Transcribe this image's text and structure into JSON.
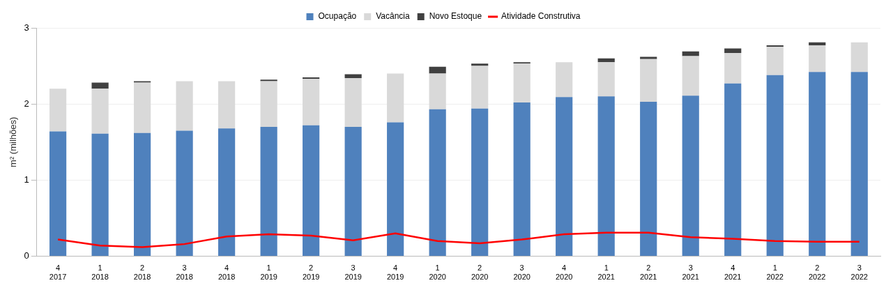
{
  "chart_data": {
    "type": "bar",
    "stacked": true,
    "ylabel": "m² (milhões)",
    "categories": [
      "4\n2017",
      "1\n2018",
      "2\n2018",
      "3\n2018",
      "4\n2018",
      "1\n2019",
      "2\n2019",
      "3\n2019",
      "4\n2019",
      "1\n2020",
      "2\n2020",
      "3\n2020",
      "4\n2020",
      "1\n2021",
      "2\n2021",
      "3\n2021",
      "4\n2021",
      "1\n2022",
      "2\n2022",
      "3\n2022"
    ],
    "series": [
      {
        "name": "Ocupação",
        "color": "#4f81bd",
        "values": [
          1.64,
          1.61,
          1.62,
          1.65,
          1.68,
          1.7,
          1.72,
          1.7,
          1.76,
          1.93,
          1.94,
          2.02,
          2.09,
          2.1,
          2.03,
          2.11,
          2.27,
          2.38,
          2.42,
          2.42
        ]
      },
      {
        "name": "Vacância",
        "color": "#d9d9d9",
        "values": [
          0.56,
          0.59,
          0.66,
          0.65,
          0.62,
          0.6,
          0.61,
          0.64,
          0.64,
          0.47,
          0.56,
          0.51,
          0.46,
          0.45,
          0.56,
          0.52,
          0.4,
          0.37,
          0.35,
          0.39
        ]
      },
      {
        "name": "Novo Estoque",
        "color": "#404040",
        "values": [
          0,
          0.08,
          0.02,
          0,
          0,
          0.02,
          0.02,
          0.05,
          0,
          0.09,
          0.03,
          0.02,
          0,
          0.05,
          0.03,
          0.06,
          0.06,
          0.02,
          0.04,
          0
        ]
      },
      {
        "name": "Atividade Construtiva",
        "type": "line",
        "color": "#ff0000",
        "values": [
          0.22,
          0.14,
          0.12,
          0.16,
          0.26,
          0.29,
          0.27,
          0.21,
          0.3,
          0.2,
          0.17,
          0.22,
          0.29,
          0.31,
          0.31,
          0.25,
          0.23,
          0.2,
          0.19,
          0.19
        ]
      }
    ],
    "ylim": [
      0,
      3
    ],
    "yticks": [
      0,
      1,
      2,
      3
    ],
    "grid": "y",
    "legend": "top",
    "marker": "none"
  }
}
